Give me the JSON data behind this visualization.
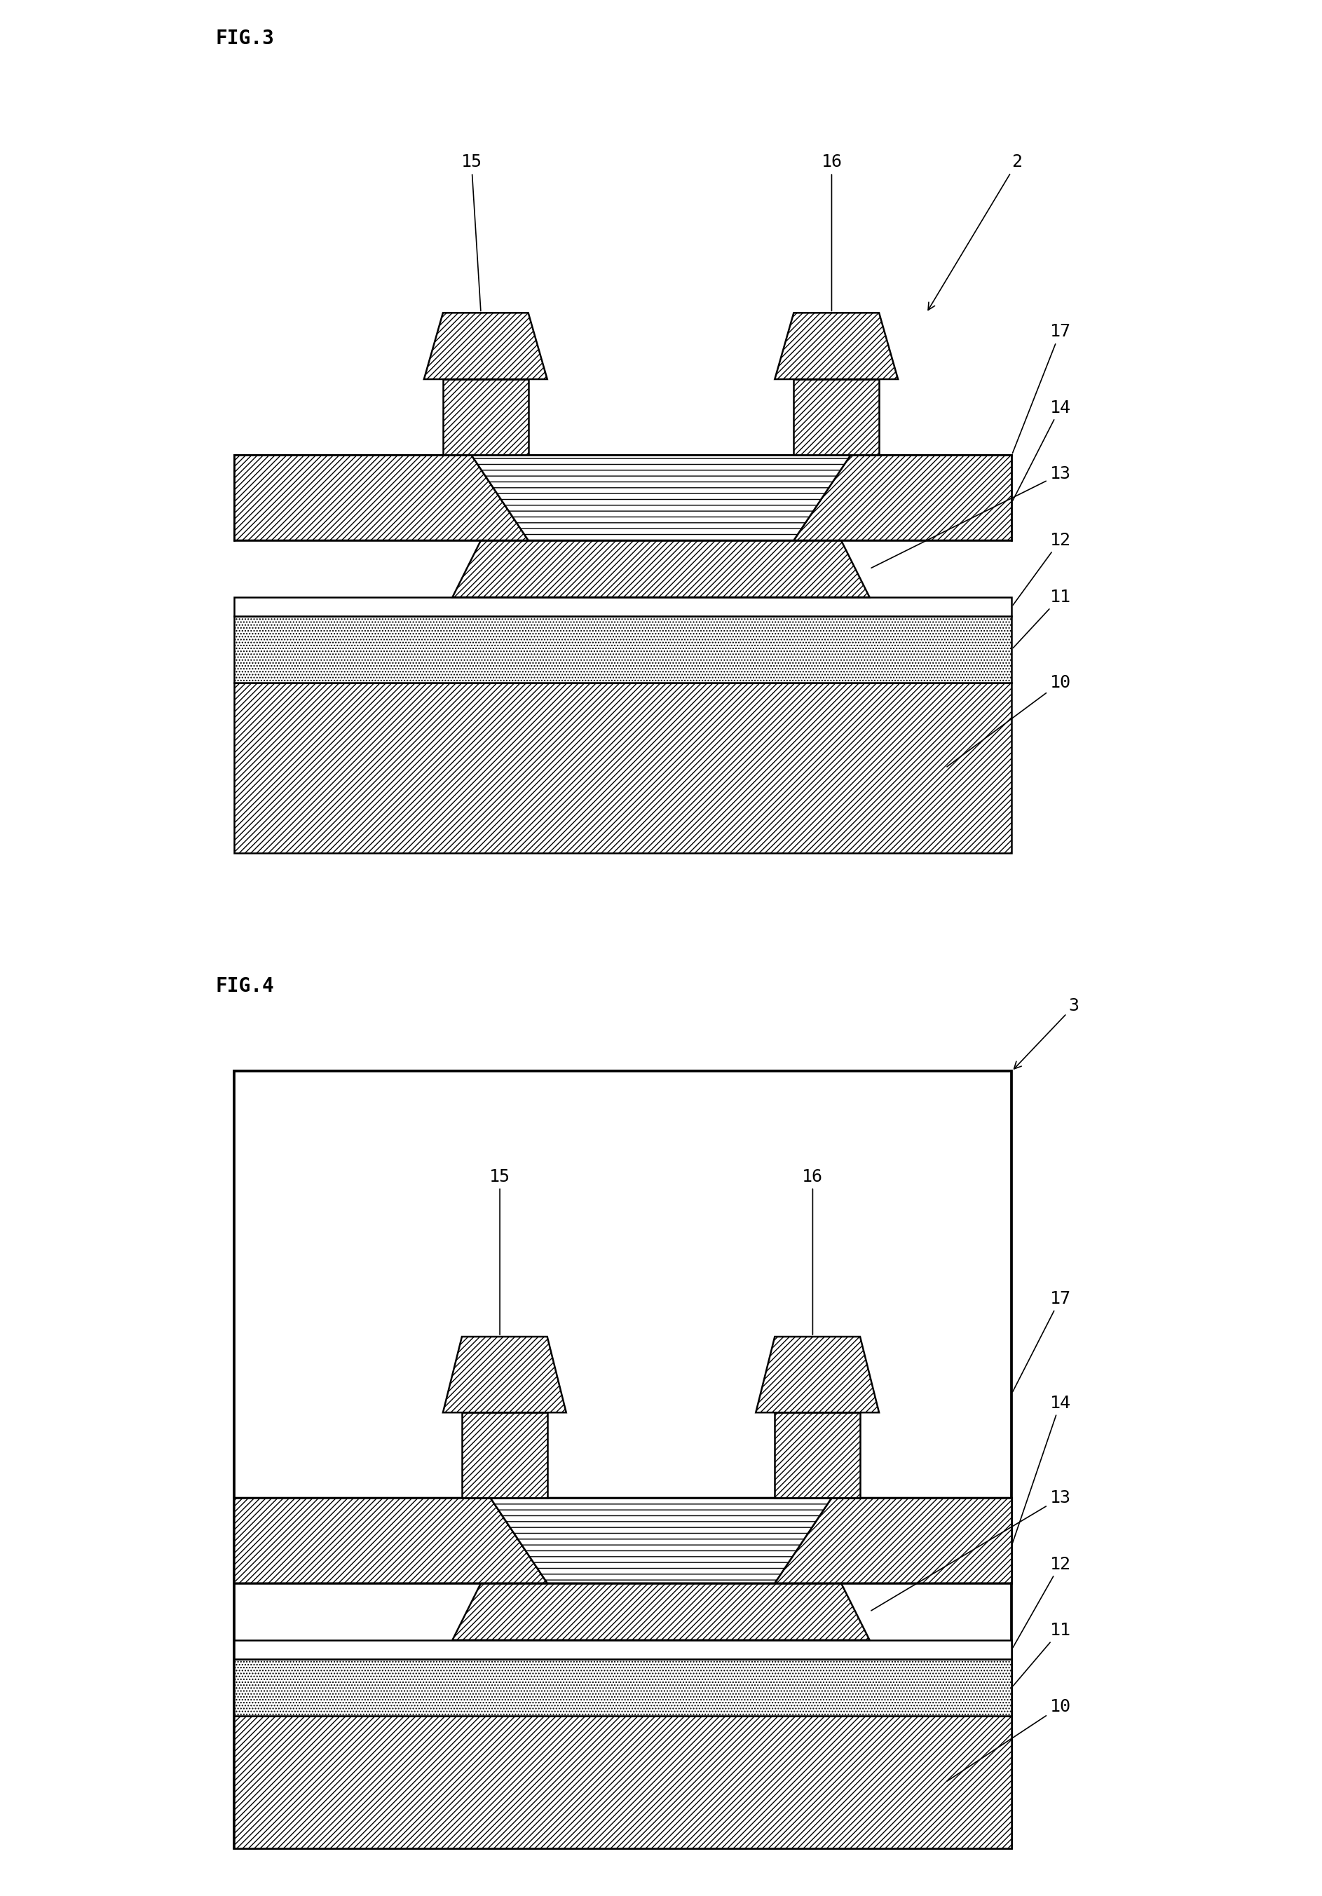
{
  "fig_width": 18.86,
  "fig_height": 27.05,
  "bg_color": "#ffffff",
  "lw": 1.8,
  "fig3_label": "FIG.3",
  "fig4_label": "FIG.4",
  "fontsize_label": 20,
  "fontsize_annot": 18
}
